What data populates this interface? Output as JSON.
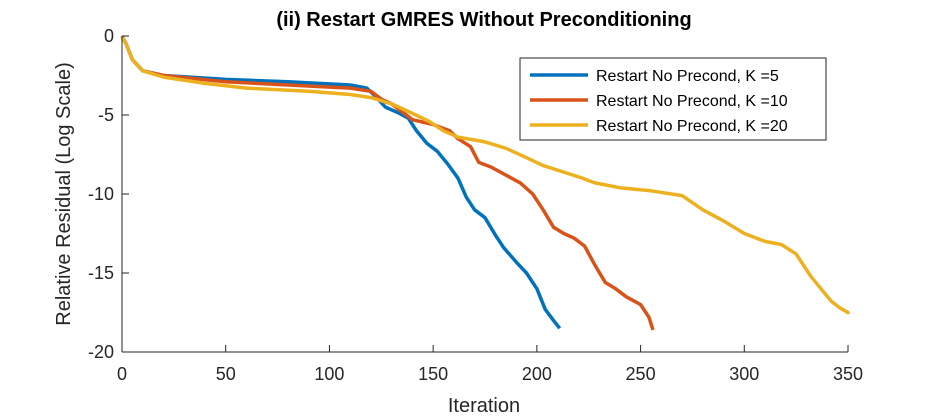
{
  "chart_data": {
    "type": "line",
    "title": "(ii) Restart GMRES Without Preconditioning",
    "xlabel": "Iteration",
    "ylabel": "Relative Residual (Log Scale)",
    "xlim": [
      0,
      350
    ],
    "ylim": [
      -20,
      0
    ],
    "xticks": [
      0,
      50,
      100,
      150,
      200,
      250,
      300,
      350
    ],
    "yticks": [
      0,
      -5,
      -10,
      -15,
      -20
    ],
    "grid": false,
    "legend_position": "top-right",
    "series": [
      {
        "name": "Restart No Precond, K =5",
        "color": "#0072BD",
        "points": [
          [
            0,
            0
          ],
          [
            2,
            -0.5
          ],
          [
            5,
            -1.5
          ],
          [
            10,
            -2.2
          ],
          [
            20,
            -2.5
          ],
          [
            50,
            -2.75
          ],
          [
            80,
            -2.9
          ],
          [
            110,
            -3.1
          ],
          [
            118,
            -3.3
          ],
          [
            122,
            -3.8
          ],
          [
            127,
            -4.5
          ],
          [
            133,
            -4.85
          ],
          [
            138,
            -5.2
          ],
          [
            142,
            -6.0
          ],
          [
            147,
            -6.8
          ],
          [
            152,
            -7.3
          ],
          [
            157,
            -8.1
          ],
          [
            162,
            -9.0
          ],
          [
            166,
            -10.2
          ],
          [
            170,
            -11.0
          ],
          [
            175,
            -11.5
          ],
          [
            180,
            -12.6
          ],
          [
            184,
            -13.4
          ],
          [
            190,
            -14.3
          ],
          [
            195,
            -15.0
          ],
          [
            200,
            -16.0
          ],
          [
            204,
            -17.3
          ],
          [
            208,
            -18.0
          ],
          [
            211,
            -18.5
          ]
        ]
      },
      {
        "name": "Restart No Precond, K =10",
        "color": "#D95319",
        "points": [
          [
            0,
            0
          ],
          [
            2,
            -0.5
          ],
          [
            5,
            -1.5
          ],
          [
            10,
            -2.2
          ],
          [
            20,
            -2.5
          ],
          [
            50,
            -2.9
          ],
          [
            80,
            -3.1
          ],
          [
            110,
            -3.3
          ],
          [
            120,
            -3.5
          ],
          [
            125,
            -4.0
          ],
          [
            130,
            -4.3
          ],
          [
            140,
            -5.3
          ],
          [
            150,
            -5.6
          ],
          [
            158,
            -6.0
          ],
          [
            162,
            -6.5
          ],
          [
            168,
            -7.0
          ],
          [
            172,
            -8.0
          ],
          [
            178,
            -8.3
          ],
          [
            185,
            -8.8
          ],
          [
            192,
            -9.3
          ],
          [
            198,
            -10.0
          ],
          [
            203,
            -11.0
          ],
          [
            208,
            -12.1
          ],
          [
            213,
            -12.5
          ],
          [
            218,
            -12.8
          ],
          [
            223,
            -13.3
          ],
          [
            228,
            -14.5
          ],
          [
            233,
            -15.6
          ],
          [
            238,
            -16.0
          ],
          [
            243,
            -16.5
          ],
          [
            250,
            -17.0
          ],
          [
            254,
            -17.8
          ],
          [
            256,
            -18.6
          ]
        ]
      },
      {
        "name": "Restart No Precond, K =20",
        "color": "#EDB120",
        "points": [
          [
            0,
            0
          ],
          [
            2,
            -0.5
          ],
          [
            5,
            -1.5
          ],
          [
            10,
            -2.2
          ],
          [
            20,
            -2.6
          ],
          [
            40,
            -3.0
          ],
          [
            60,
            -3.3
          ],
          [
            90,
            -3.5
          ],
          [
            110,
            -3.7
          ],
          [
            120,
            -3.9
          ],
          [
            130,
            -4.3
          ],
          [
            140,
            -4.9
          ],
          [
            148,
            -5.4
          ],
          [
            155,
            -6.0
          ],
          [
            162,
            -6.4
          ],
          [
            175,
            -6.7
          ],
          [
            185,
            -7.1
          ],
          [
            195,
            -7.7
          ],
          [
            203,
            -8.2
          ],
          [
            215,
            -8.7
          ],
          [
            222,
            -9.0
          ],
          [
            228,
            -9.3
          ],
          [
            240,
            -9.6
          ],
          [
            255,
            -9.8
          ],
          [
            270,
            -10.1
          ],
          [
            280,
            -11.0
          ],
          [
            290,
            -11.7
          ],
          [
            300,
            -12.5
          ],
          [
            310,
            -13.0
          ],
          [
            318,
            -13.2
          ],
          [
            325,
            -13.8
          ],
          [
            332,
            -15.2
          ],
          [
            337,
            -16.0
          ],
          [
            342,
            -16.8
          ],
          [
            346,
            -17.2
          ],
          [
            352,
            -17.5
          ],
          [
            357,
            -17.6
          ]
        ]
      }
    ]
  }
}
